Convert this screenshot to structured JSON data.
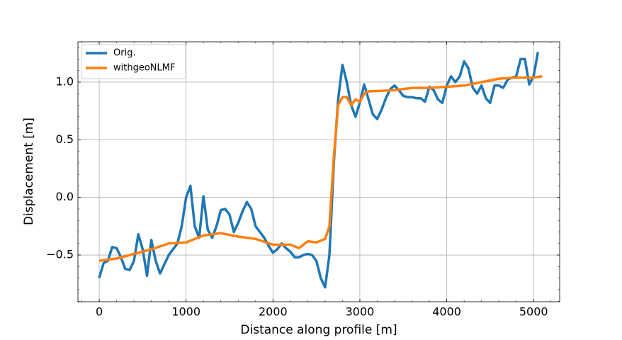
{
  "chart_data": {
    "type": "line",
    "xlabel": "Distance along profile [m]",
    "ylabel": "Displacement [m]",
    "xlim": [
      -245,
      5300
    ],
    "ylim": [
      -0.905,
      1.35
    ],
    "xticks": [
      0,
      1000,
      2000,
      3000,
      4000,
      5000
    ],
    "yticks": [
      {
        "value": -0.5,
        "label": "−0.5"
      },
      {
        "value": 0,
        "label": "0.0"
      },
      0.5,
      {
        "value": 1,
        "label": "1.0"
      }
    ],
    "grid": true,
    "minor_ticks": true,
    "legend": "upper left",
    "series": [
      {
        "name": "Orig.",
        "color": "#1f77b4",
        "x": [
          0,
          50,
          100,
          150,
          200,
          250,
          300,
          350,
          400,
          450,
          500,
          550,
          600,
          650,
          700,
          750,
          800,
          850,
          900,
          950,
          1000,
          1050,
          1100,
          1150,
          1200,
          1250,
          1300,
          1350,
          1400,
          1450,
          1500,
          1550,
          1600,
          1650,
          1700,
          1750,
          1800,
          1850,
          1900,
          1950,
          2000,
          2050,
          2100,
          2150,
          2200,
          2250,
          2300,
          2350,
          2400,
          2450,
          2500,
          2550,
          2600,
          2650,
          2700,
          2750,
          2800,
          2850,
          2900,
          2950,
          3000,
          3050,
          3100,
          3150,
          3200,
          3250,
          3300,
          3350,
          3400,
          3450,
          3500,
          3550,
          3600,
          3650,
          3700,
          3750,
          3800,
          3850,
          3900,
          3950,
          4000,
          4050,
          4100,
          4150,
          4200,
          4250,
          4300,
          4350,
          4400,
          4450,
          4500,
          4550,
          4600,
          4650,
          4700,
          4750,
          4800,
          4850,
          4900,
          4950,
          5000,
          5050
        ],
        "values": [
          -0.7,
          -0.57,
          -0.55,
          -0.43,
          -0.44,
          -0.52,
          -0.62,
          -0.63,
          -0.55,
          -0.32,
          -0.45,
          -0.68,
          -0.37,
          -0.55,
          -0.66,
          -0.58,
          -0.5,
          -0.45,
          -0.4,
          -0.25,
          0.0,
          0.1,
          -0.25,
          -0.35,
          0.01,
          -0.28,
          -0.35,
          -0.25,
          -0.11,
          -0.1,
          -0.15,
          -0.3,
          -0.22,
          -0.12,
          -0.04,
          -0.1,
          -0.25,
          -0.3,
          -0.35,
          -0.42,
          -0.48,
          -0.45,
          -0.4,
          -0.44,
          -0.47,
          -0.52,
          -0.52,
          -0.5,
          -0.49,
          -0.5,
          -0.55,
          -0.7,
          -0.78,
          -0.5,
          0.3,
          0.85,
          1.15,
          1.0,
          0.8,
          0.7,
          0.82,
          0.98,
          0.85,
          0.72,
          0.68,
          0.76,
          0.86,
          0.94,
          0.97,
          0.93,
          0.88,
          0.87,
          0.87,
          0.86,
          0.86,
          0.83,
          0.96,
          0.93,
          0.85,
          0.82,
          0.97,
          1.05,
          1.0,
          1.05,
          1.18,
          1.12,
          0.95,
          0.9,
          0.97,
          0.86,
          0.82,
          0.97,
          0.97,
          0.95,
          1.02,
          1.04,
          1.05,
          1.2,
          1.2,
          0.98,
          1.05,
          1.26
        ]
      },
      {
        "name": "withgeoNLMF",
        "color": "#ff7f0e",
        "x": [
          0,
          200,
          400,
          600,
          800,
          1000,
          1200,
          1400,
          1600,
          1800,
          2000,
          2200,
          2300,
          2400,
          2500,
          2600,
          2650,
          2700,
          2750,
          2800,
          2850,
          2900,
          2950,
          3000,
          3050,
          3100,
          3400,
          3600,
          3800,
          4000,
          4200,
          4400,
          4600,
          4800,
          5000,
          5100
        ],
        "values": [
          -0.55,
          -0.53,
          -0.49,
          -0.45,
          -0.4,
          -0.39,
          -0.33,
          -0.31,
          -0.34,
          -0.36,
          -0.41,
          -0.41,
          -0.44,
          -0.38,
          -0.39,
          -0.36,
          -0.25,
          0.35,
          0.8,
          0.87,
          0.87,
          0.8,
          0.85,
          0.83,
          0.9,
          0.92,
          0.93,
          0.95,
          0.95,
          0.96,
          0.97,
          1.0,
          1.03,
          1.04,
          1.04,
          1.05
        ]
      }
    ]
  }
}
